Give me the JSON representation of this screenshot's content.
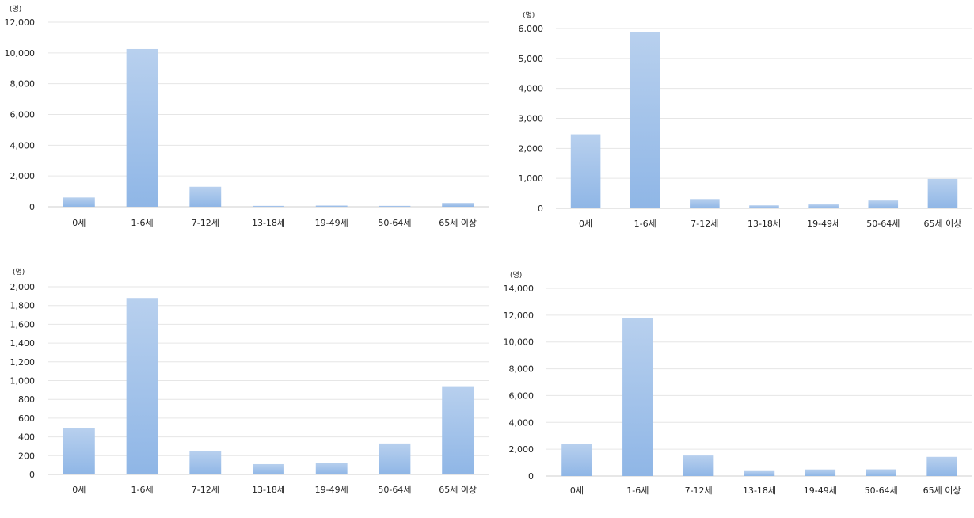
{
  "chart_data": [
    {
      "type": "bar",
      "unit_label": "(명)",
      "categories": [
        "0세",
        "1-6세",
        "7-12세",
        "13-18세",
        "19-49세",
        "50-64세",
        "65세 이상"
      ],
      "values": [
        600,
        10250,
        1300,
        60,
        80,
        60,
        250
      ],
      "ylim": [
        0,
        12000
      ],
      "ytick_values": [
        0,
        2000,
        4000,
        6000,
        8000,
        10000,
        12000
      ],
      "ytick_labels": [
        "0",
        "2,000",
        "4,000",
        "6,000",
        "8,000",
        "10,000",
        "12,000"
      ],
      "grid": true,
      "colors": {
        "bar_top": "#b8d0ee",
        "bar_bottom": "#8fb6e6",
        "grid": "#e6e6e6",
        "axis": "#cfcfcf"
      }
    },
    {
      "type": "bar",
      "unit_label": "(명)",
      "categories": [
        "0세",
        "1-6세",
        "7-12세",
        "13-18세",
        "19-49세",
        "50-64세",
        "65세 이상"
      ],
      "values": [
        2470,
        5880,
        310,
        100,
        130,
        260,
        980
      ],
      "ylim": [
        0,
        6000
      ],
      "ytick_values": [
        0,
        1000,
        2000,
        3000,
        4000,
        5000,
        6000
      ],
      "ytick_labels": [
        "0",
        "1,000",
        "2,000",
        "3,000",
        "4,000",
        "5,000",
        "6,000"
      ],
      "grid": true,
      "colors": {
        "bar_top": "#b8d0ee",
        "bar_bottom": "#8fb6e6",
        "grid": "#e6e6e6",
        "axis": "#cfcfcf"
      }
    },
    {
      "type": "bar",
      "unit_label": "(명)",
      "categories": [
        "0세",
        "1-6세",
        "7-12세",
        "13-18세",
        "19-49세",
        "50-64세",
        "65세 이상"
      ],
      "values": [
        490,
        1880,
        250,
        110,
        125,
        330,
        940
      ],
      "ylim": [
        0,
        2000
      ],
      "ytick_values": [
        0,
        200,
        400,
        600,
        800,
        1000,
        1200,
        1400,
        1600,
        1800,
        2000
      ],
      "ytick_labels": [
        "0",
        "200",
        "400",
        "600",
        "800",
        "1,000",
        "1,200",
        "1,400",
        "1,600",
        "1,800",
        "2,000"
      ],
      "grid": true,
      "colors": {
        "bar_top": "#b8d0ee",
        "bar_bottom": "#8fb6e6",
        "grid": "#e6e6e6",
        "axis": "#cfcfcf"
      }
    },
    {
      "type": "bar",
      "unit_label": "(명)",
      "categories": [
        "0세",
        "1-6세",
        "7-12세",
        "13-18세",
        "19-49세",
        "50-64세",
        "65세 이상"
      ],
      "values": [
        2380,
        11800,
        1530,
        370,
        490,
        500,
        1430
      ],
      "ylim": [
        0,
        14000
      ],
      "ytick_values": [
        0,
        2000,
        4000,
        6000,
        8000,
        10000,
        12000,
        14000
      ],
      "ytick_labels": [
        "0",
        "2,000",
        "4,000",
        "6,000",
        "8,000",
        "10,000",
        "12,000",
        "14,000"
      ],
      "grid": true,
      "colors": {
        "bar_top": "#b8d0ee",
        "bar_bottom": "#8fb6e6",
        "grid": "#e6e6e6",
        "axis": "#cfcfcf"
      }
    }
  ]
}
